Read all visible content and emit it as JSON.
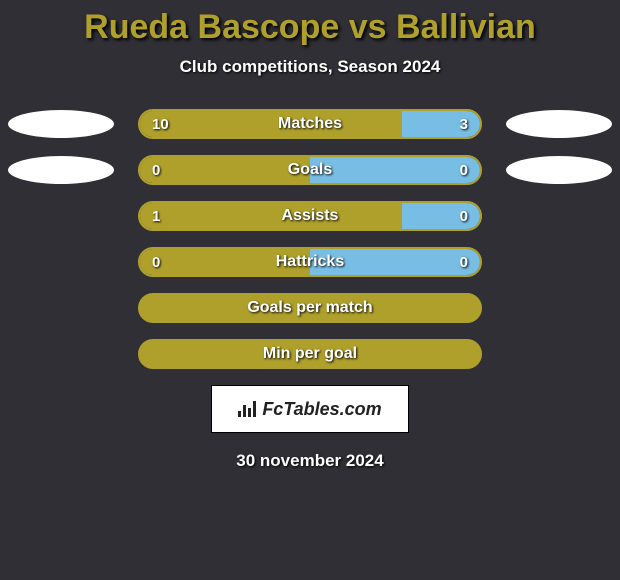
{
  "title": "Rueda Bascope vs Ballivian",
  "title_color": "#afa02c",
  "subtitle": "Club competitions, Season 2024",
  "logo_text": "FcTables.com",
  "date": "30 november 2024",
  "colors": {
    "player1": "#afa02c",
    "player2": "#78bee4",
    "background": "#302f35"
  },
  "rows": [
    {
      "label": "Matches",
      "v1": "10",
      "v2": "3",
      "left_pct": 77,
      "right_pct": 23,
      "show_ovals": true
    },
    {
      "label": "Goals",
      "v1": "0",
      "v2": "0",
      "left_pct": 50,
      "right_pct": 50,
      "show_ovals": true
    },
    {
      "label": "Assists",
      "v1": "1",
      "v2": "0",
      "left_pct": 77,
      "right_pct": 23,
      "show_ovals": false
    },
    {
      "label": "Hattricks",
      "v1": "0",
      "v2": "0",
      "left_pct": 50,
      "right_pct": 50,
      "show_ovals": false
    },
    {
      "label": "Goals per match",
      "v1": "",
      "v2": "",
      "left_pct": 100,
      "right_pct": 0,
      "show_ovals": false,
      "solid": true
    },
    {
      "label": "Min per goal",
      "v1": "",
      "v2": "",
      "left_pct": 100,
      "right_pct": 0,
      "show_ovals": false,
      "solid": true
    }
  ]
}
